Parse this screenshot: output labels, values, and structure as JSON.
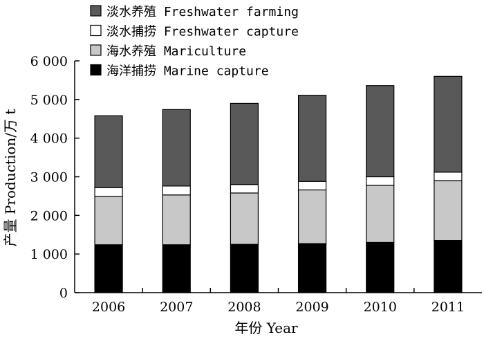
{
  "chart_data": {
    "type": "bar",
    "stacked": true,
    "categories": [
      "2006",
      "2007",
      "2008",
      "2009",
      "2010",
      "2011"
    ],
    "series": [
      {
        "name": "海洋捕捞 Marine capture",
        "color": "#000000",
        "values": [
          1240,
          1240,
          1250,
          1270,
          1300,
          1350
        ]
      },
      {
        "name": "海水养殖 Mariculture",
        "color": "#c8c8c8",
        "values": [
          1250,
          1290,
          1330,
          1390,
          1480,
          1550
        ]
      },
      {
        "name": "淡水捕捞 Freshwater capture",
        "color": "#ffffff",
        "values": [
          230,
          230,
          220,
          220,
          220,
          220
        ]
      },
      {
        "name": "淡水养殖 Freshwater farming",
        "color": "#595959",
        "values": [
          1860,
          1980,
          2100,
          2230,
          2360,
          2480
        ]
      }
    ],
    "legend_order": [
      3,
      2,
      1,
      0
    ],
    "legend_position": "top-left",
    "xlabel": "年份 Year",
    "ylabel": "产量 Production/万 t",
    "ylim": [
      0,
      6000
    ],
    "yticks": [
      0,
      1000,
      2000,
      3000,
      4000,
      5000,
      6000
    ],
    "ytick_labels": [
      "0",
      "1 000",
      "2 000",
      "3 000",
      "4 000",
      "5 000",
      "6 000"
    ],
    "grid": false
  }
}
